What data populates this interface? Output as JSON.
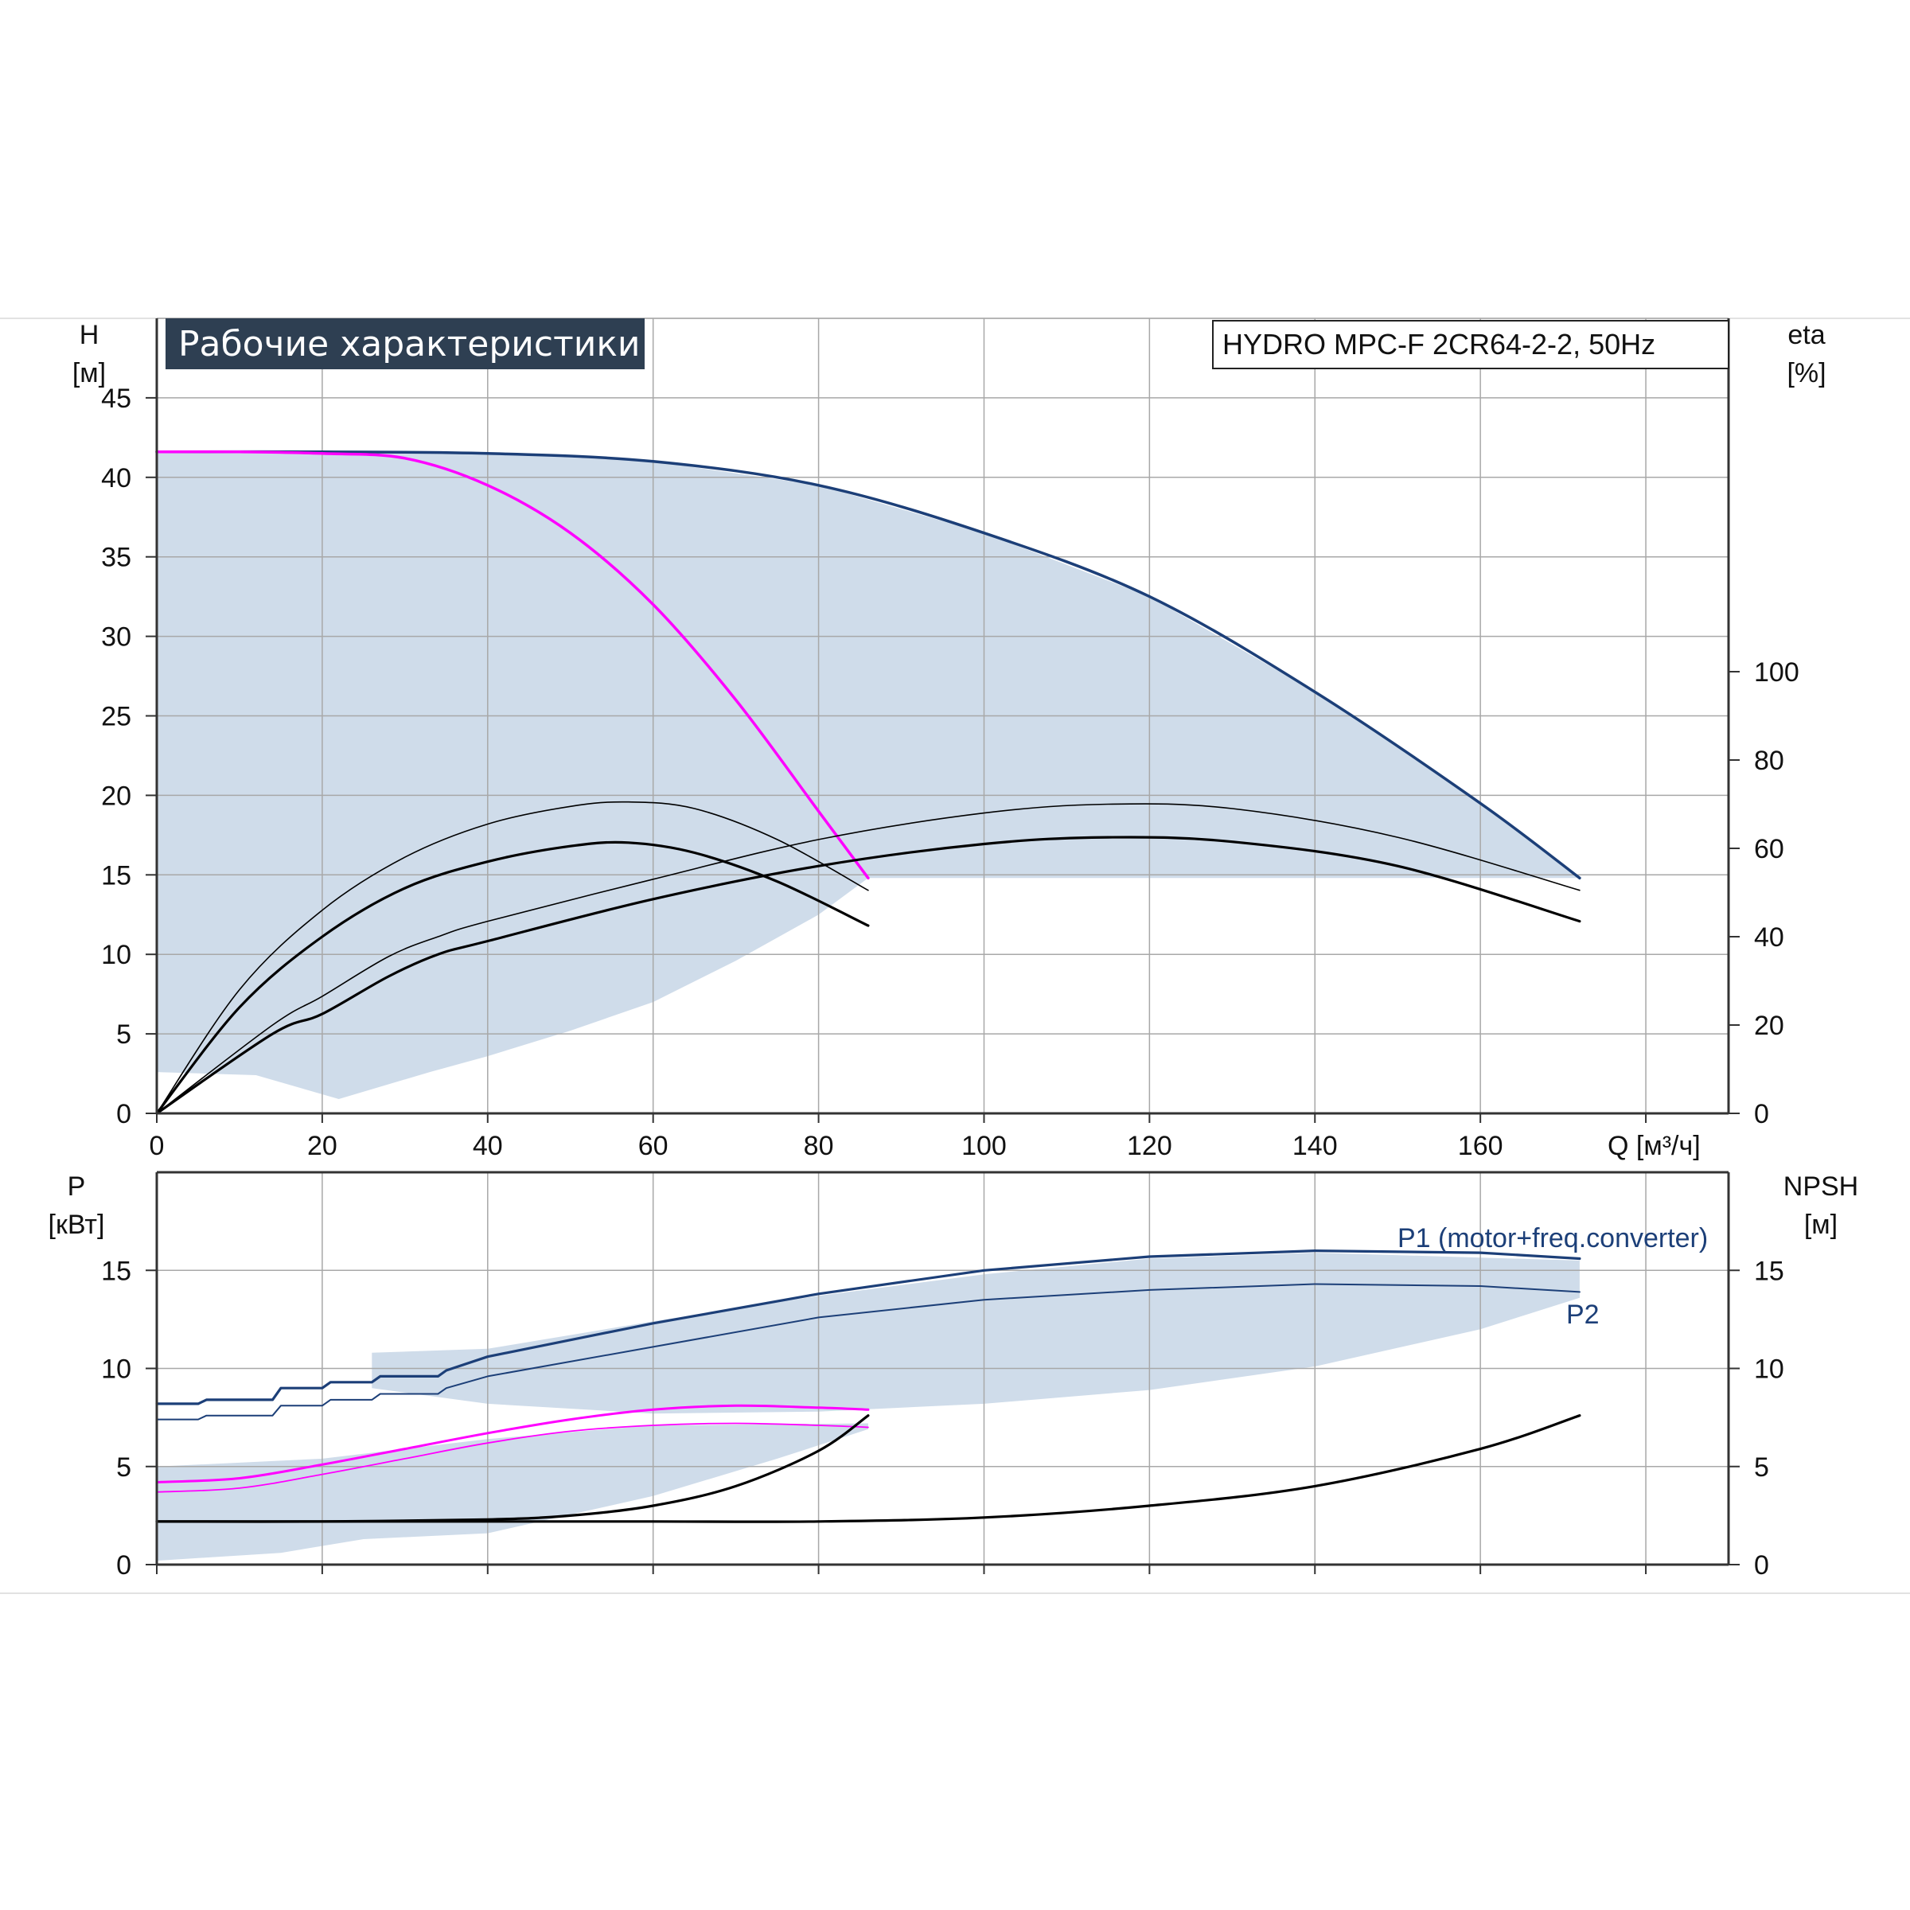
{
  "title": "Рабочие характеристики",
  "model": "HYDRO MPC-F 2CR64-2-2, 50Hz",
  "colors": {
    "band": "#cfdcea",
    "navy": "#1c3f78",
    "magenta": "#ff00ff",
    "black": "#000000",
    "grid": "#a8a8a8",
    "title_bg": "#2e3f52"
  },
  "labels": {
    "h_axis": "H",
    "h_unit": "[м]",
    "eta_axis": "eta",
    "eta_unit": "[%]",
    "q_axis": "Q [м³/ч]",
    "p_axis": "P",
    "p_unit": "[кВт]",
    "npsh_axis": "NPSH",
    "npsh_unit": "[м]",
    "p1_label": "P1 (motor+freq.converter)",
    "p2_label": "P2"
  },
  "chart_data": [
    {
      "type": "line",
      "panel": "top",
      "xlabel": "Q [м³/ч]",
      "ylabel": "H [м]",
      "y2label": "eta [%]",
      "xlim": [
        0,
        190
      ],
      "ylim": [
        0,
        50
      ],
      "y2lim": [
        0,
        180
      ],
      "xticks": [
        0,
        20,
        40,
        60,
        80,
        100,
        120,
        140,
        160
      ],
      "yticks": [
        0,
        5,
        10,
        15,
        20,
        25,
        30,
        35,
        40,
        45
      ],
      "y2ticks": [
        0,
        20,
        40,
        60,
        80,
        100
      ],
      "grid": true,
      "band_upper": [
        [
          0,
          41.6
        ],
        [
          20,
          41.6
        ],
        [
          40,
          41.5
        ],
        [
          60,
          41.0
        ],
        [
          80,
          39.5
        ],
        [
          100,
          36.5
        ],
        [
          120,
          32.5
        ],
        [
          140,
          26.5
        ],
        [
          160,
          19.5
        ],
        [
          172,
          14.8
        ]
      ],
      "band_lower": [
        [
          172,
          14.8
        ],
        [
          86,
          14.8
        ],
        [
          80,
          12.5
        ],
        [
          70,
          9.6
        ],
        [
          60,
          7.0
        ],
        [
          50,
          5.2
        ],
        [
          40,
          3.6
        ],
        [
          33,
          2.6
        ],
        [
          22,
          0.9
        ],
        [
          12,
          2.4
        ],
        [
          0,
          2.6
        ]
      ],
      "series": [
        {
          "axis": "left",
          "color": "navy",
          "width": 3.5,
          "x": [
            0,
            20,
            40,
            60,
            80,
            100,
            120,
            140,
            160,
            172
          ],
          "y": [
            41.6,
            41.6,
            41.5,
            41.0,
            39.5,
            36.5,
            32.5,
            26.5,
            19.5,
            14.8
          ]
        },
        {
          "axis": "left",
          "color": "magenta",
          "width": 3.5,
          "x": [
            0,
            10,
            20,
            30,
            40,
            50,
            60,
            70,
            80,
            86
          ],
          "y": [
            41.6,
            41.6,
            41.5,
            41.2,
            39.5,
            36.5,
            32.0,
            26.0,
            19.0,
            14.8
          ]
        },
        {
          "axis": "right",
          "color": "black",
          "width": 1.6,
          "x": [
            0,
            10,
            20,
            30,
            40,
            50,
            57,
            65,
            75,
            86
          ],
          "y": [
            0,
            28,
            46,
            58,
            65.5,
            69.5,
            70.5,
            69.0,
            62.0,
            50.5
          ]
        },
        {
          "axis": "right",
          "color": "black",
          "width": 3.2,
          "x": [
            0,
            10,
            20,
            30,
            40,
            50,
            57,
            65,
            75,
            86
          ],
          "y": [
            0,
            24,
            40,
            51,
            57,
            60.5,
            61.3,
            59.0,
            52.5,
            42.5
          ]
        },
        {
          "axis": "right",
          "color": "black",
          "width": 1.6,
          "x": [
            0,
            14,
            20,
            28,
            34,
            40,
            60,
            80,
            100,
            115,
            130,
            150,
            172
          ],
          "y": [
            0,
            20,
            26.5,
            35.5,
            40,
            43.5,
            53,
            62,
            68,
            70,
            69,
            62.5,
            50.5
          ]
        },
        {
          "axis": "right",
          "color": "black",
          "width": 3.2,
          "x": [
            0,
            14,
            20,
            28,
            34,
            40,
            60,
            80,
            100,
            115,
            130,
            150,
            172
          ],
          "y": [
            0,
            18,
            22.5,
            31,
            36,
            39,
            48.5,
            56,
            61,
            62.5,
            61.5,
            56,
            43.5
          ]
        }
      ]
    },
    {
      "type": "line",
      "panel": "bottom",
      "xlabel": "Q [м³/ч]",
      "ylabel": "P [кВт]",
      "y2label": "NPSH [м]",
      "xlim": [
        0,
        190
      ],
      "ylim": [
        0,
        20
      ],
      "y2lim": [
        0,
        20
      ],
      "yticks": [
        0,
        5,
        10,
        15
      ],
      "y2ticks": [
        0,
        5,
        10,
        15
      ],
      "grid": true,
      "bands": [
        {
          "upper": [
            [
              26,
              10.8
            ],
            [
              40,
              11.0
            ],
            [
              60,
              12.4
            ],
            [
              80,
              13.7
            ],
            [
              100,
              14.8
            ],
            [
              120,
              15.6
            ],
            [
              140,
              15.9
            ],
            [
              172,
              15.5
            ]
          ],
          "lower": [
            [
              172,
              13.6
            ],
            [
              160,
              12.0
            ],
            [
              140,
              10.1
            ],
            [
              120,
              8.9
            ],
            [
              100,
              8.2
            ],
            [
              80,
              7.8
            ],
            [
              60,
              7.7
            ],
            [
              40,
              8.2
            ],
            [
              26,
              9.0
            ]
          ]
        },
        {
          "upper": [
            [
              0,
              5.0
            ],
            [
              20,
              5.4
            ],
            [
              40,
              6.4
            ],
            [
              60,
              7.1
            ],
            [
              86,
              7.2
            ]
          ],
          "lower": [
            [
              86,
              6.9
            ],
            [
              75,
              5.4
            ],
            [
              60,
              3.5
            ],
            [
              40,
              1.6
            ],
            [
              25,
              1.3
            ],
            [
              15,
              0.6
            ],
            [
              0,
              0.2
            ]
          ]
        }
      ],
      "series": [
        {
          "name": "P1 (motor+freq.converter)",
          "axis": "left",
          "color": "navy",
          "width": 3.2,
          "x": [
            0,
            5,
            6,
            14,
            15,
            20,
            21,
            26,
            27,
            34,
            35,
            40,
            60,
            80,
            100,
            120,
            140,
            160,
            172
          ],
          "y": [
            8.2,
            8.2,
            8.4,
            8.4,
            9.0,
            9.0,
            9.3,
            9.3,
            9.6,
            9.6,
            9.9,
            10.6,
            12.3,
            13.8,
            15.0,
            15.7,
            16.0,
            15.9,
            15.6
          ]
        },
        {
          "name": "P2",
          "axis": "left",
          "color": "navy",
          "width": 2.0,
          "x": [
            0,
            5,
            6,
            14,
            15,
            20,
            21,
            26,
            27,
            34,
            35,
            40,
            60,
            80,
            100,
            120,
            140,
            160,
            172
          ],
          "y": [
            7.4,
            7.4,
            7.6,
            7.6,
            8.1,
            8.1,
            8.4,
            8.4,
            8.7,
            8.7,
            9.0,
            9.6,
            11.1,
            12.6,
            13.5,
            14.0,
            14.3,
            14.2,
            13.9
          ]
        },
        {
          "axis": "left",
          "color": "magenta",
          "width": 3.0,
          "x": [
            0,
            10,
            20,
            30,
            40,
            50,
            60,
            70,
            80,
            86
          ],
          "y": [
            4.2,
            4.4,
            5.1,
            5.9,
            6.7,
            7.4,
            7.9,
            8.1,
            8.0,
            7.9
          ]
        },
        {
          "axis": "left",
          "color": "magenta",
          "width": 1.8,
          "x": [
            0,
            10,
            20,
            30,
            40,
            50,
            60,
            70,
            80,
            86
          ],
          "y": [
            3.7,
            3.9,
            4.6,
            5.4,
            6.2,
            6.8,
            7.1,
            7.2,
            7.1,
            7.0
          ]
        },
        {
          "axis": "right",
          "color": "black",
          "width": 3.2,
          "x": [
            0,
            20,
            40,
            50,
            60,
            70,
            80,
            86
          ],
          "y": [
            2.2,
            2.2,
            2.3,
            2.5,
            3.0,
            4.0,
            5.8,
            7.6
          ]
        },
        {
          "axis": "right",
          "color": "black",
          "width": 3.2,
          "x": [
            0,
            40,
            60,
            80,
            100,
            120,
            140,
            160,
            172
          ],
          "y": [
            2.2,
            2.2,
            2.2,
            2.2,
            2.4,
            3.0,
            4.0,
            5.9,
            7.6
          ]
        }
      ]
    }
  ]
}
